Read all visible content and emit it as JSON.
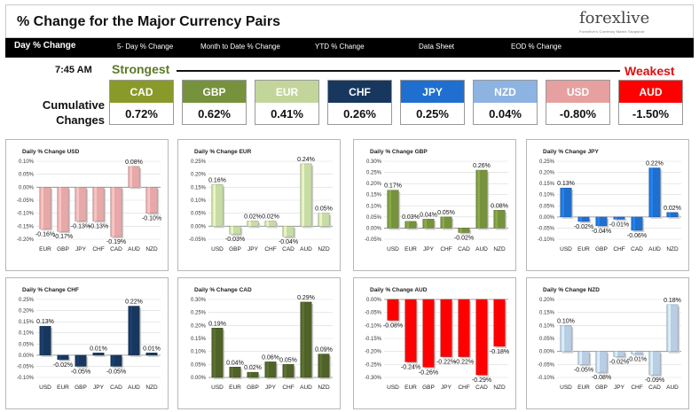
{
  "header": {
    "title": "% Change for the Major Currency Pairs",
    "logo_text": "forexlive",
    "logo_tagline": "Forexlive's Currency Matrix Snapshot"
  },
  "nav": {
    "items": [
      "Day % Change",
      "5- Day % Change",
      "Month to Date % Change",
      "YTD % Change",
      "Data Sheet",
      "EOD % Change"
    ]
  },
  "summary": {
    "time": "7:45 AM",
    "strongest_label": "Strongest",
    "weakest_label": "Weakest",
    "cumulative_label": "Cumulative Changes",
    "currencies": [
      {
        "code": "CAD",
        "value": "0.72%",
        "color": "#8a9a2a"
      },
      {
        "code": "GBP",
        "value": "0.62%",
        "color": "#76923c"
      },
      {
        "code": "EUR",
        "value": "0.41%",
        "color": "#c2d69b"
      },
      {
        "code": "CHF",
        "value": "0.26%",
        "color": "#17375e"
      },
      {
        "code": "JPY",
        "value": "0.25%",
        "color": "#1f6fd0"
      },
      {
        "code": "NZD",
        "value": "0.04%",
        "color": "#8db3e2"
      },
      {
        "code": "USD",
        "value": "-0.80%",
        "color": "#e6a0a0"
      },
      {
        "code": "AUD",
        "value": "-1.50%",
        "color": "#ff0000"
      }
    ]
  },
  "chart_data": [
    {
      "type": "bar",
      "title": "Daily % Change USD",
      "categories": [
        "EUR",
        "GBP",
        "JPY",
        "CHF",
        "CAD",
        "AUD",
        "NZD"
      ],
      "values": [
        -0.16,
        -0.17,
        -0.13,
        -0.13,
        -0.19,
        0.08,
        -0.1
      ],
      "labels": [
        "-0.16%",
        "-0.17%",
        "-0.13%",
        "-0.13%",
        "-0.19%",
        "0.08%",
        "-0.10%"
      ],
      "ylim": [
        -0.2,
        0.1
      ],
      "ticks": [
        0.1,
        0.05,
        0.0,
        -0.05,
        -0.1,
        -0.15,
        -0.2
      ],
      "tick_labels": [
        "0.10%",
        "0.05%",
        "0.00%",
        "-0.05%",
        "-0.10%",
        "-0.15%",
        "-0.20%"
      ],
      "color": "#e6a8a8"
    },
    {
      "type": "bar",
      "title": "Daily % Change EUR",
      "categories": [
        "USD",
        "GBP",
        "JPY",
        "CHF",
        "CAD",
        "AUD",
        "NZD"
      ],
      "values": [
        0.16,
        -0.03,
        0.02,
        0.02,
        -0.04,
        0.24,
        0.05
      ],
      "labels": [
        "0.16%",
        "-0.03%",
        "0.02%",
        "0.02%",
        "-0.04%",
        "0.24%",
        "0.05%"
      ],
      "ylim": [
        -0.05,
        0.25
      ],
      "ticks": [
        0.25,
        0.2,
        0.15,
        0.1,
        0.05,
        0.0,
        -0.05
      ],
      "tick_labels": [
        "0.25%",
        "0.20%",
        "0.15%",
        "0.10%",
        "0.05%",
        "0.00%",
        "-0.05%"
      ],
      "color": "#c8dca6"
    },
    {
      "type": "bar",
      "title": "Daily % Change GBP",
      "categories": [
        "USD",
        "EUR",
        "JPY",
        "CHF",
        "CAD",
        "AUD",
        "NZD"
      ],
      "values": [
        0.17,
        0.03,
        0.04,
        0.05,
        -0.02,
        0.26,
        0.08
      ],
      "labels": [
        "0.17%",
        "0.03%",
        "0.04%",
        "0.05%",
        "-0.02%",
        "0.26%",
        "0.08%"
      ],
      "ylim": [
        -0.05,
        0.3
      ],
      "ticks": [
        0.3,
        0.25,
        0.2,
        0.15,
        0.1,
        0.05,
        0.0,
        -0.05
      ],
      "tick_labels": [
        "0.30%",
        "0.25%",
        "0.20%",
        "0.15%",
        "0.10%",
        "0.05%",
        "0.00%",
        "-0.05%"
      ],
      "color": "#76923c"
    },
    {
      "type": "bar",
      "title": "Daily % Change JPY",
      "categories": [
        "USD",
        "EUR",
        "GBP",
        "CHF",
        "CAD",
        "AUD",
        "NZD"
      ],
      "values": [
        0.13,
        -0.02,
        -0.04,
        -0.01,
        -0.06,
        0.22,
        0.02
      ],
      "labels": [
        "0.13%",
        "-0.02%",
        "-0.04%",
        "-0.01%",
        "-0.06%",
        "0.22%",
        "0.02%"
      ],
      "ylim": [
        -0.1,
        0.25
      ],
      "ticks": [
        0.25,
        0.2,
        0.15,
        0.1,
        0.05,
        0.0,
        -0.05,
        -0.1
      ],
      "tick_labels": [
        "0.25%",
        "0.20%",
        "0.15%",
        "0.10%",
        "0.05%",
        "0.00%",
        "-0.05%",
        "-0.10%"
      ],
      "color": "#1f6fd0"
    },
    {
      "type": "bar",
      "title": "Daily % Change CHF",
      "categories": [
        "USD",
        "EUR",
        "GBP",
        "JPY",
        "CAD",
        "AUD",
        "NZD"
      ],
      "values": [
        0.13,
        -0.02,
        -0.05,
        0.01,
        -0.05,
        0.22,
        0.01
      ],
      "labels": [
        "0.13%",
        "-0.02%",
        "-0.05%",
        "0.01%",
        "-0.05%",
        "0.22%",
        "0.01%"
      ],
      "ylim": [
        -0.1,
        0.25
      ],
      "ticks": [
        0.25,
        0.2,
        0.15,
        0.1,
        0.05,
        0.0,
        -0.05,
        -0.1
      ],
      "tick_labels": [
        "0.25%",
        "0.20%",
        "0.15%",
        "0.10%",
        "0.05%",
        "0.00%",
        "-0.05%",
        "-0.10%"
      ],
      "color": "#17375e"
    },
    {
      "type": "bar",
      "title": "Daily % Change CAD",
      "categories": [
        "USD",
        "EUR",
        "GBP",
        "JPY",
        "CHF",
        "AUD",
        "NZD"
      ],
      "values": [
        0.19,
        0.04,
        0.02,
        0.06,
        0.05,
        0.29,
        0.09
      ],
      "labels": [
        "0.19%",
        "0.04%",
        "0.02%",
        "0.06%",
        "0.05%",
        "0.29%",
        "0.09%"
      ],
      "ylim": [
        0.0,
        0.3
      ],
      "ticks": [
        0.3,
        0.25,
        0.2,
        0.15,
        0.1,
        0.05,
        0.0
      ],
      "tick_labels": [
        "0.30%",
        "0.25%",
        "0.20%",
        "0.15%",
        "0.10%",
        "0.05%",
        "0.00%"
      ],
      "color": "#4f6228"
    },
    {
      "type": "bar",
      "title": "Daily % Change AUD",
      "categories": [
        "USD",
        "EUR",
        "GBP",
        "JPY",
        "CHF",
        "CAD",
        "NZD"
      ],
      "values": [
        -0.08,
        -0.24,
        -0.26,
        -0.22,
        -0.22,
        -0.29,
        -0.18
      ],
      "labels": [
        "-0.08%",
        "-0.24%",
        "-0.26%",
        "-0.22%",
        "-0.22%",
        "-0.29%",
        "-0.18%"
      ],
      "ylim": [
        -0.3,
        0.0
      ],
      "ticks": [
        0.0,
        -0.05,
        -0.1,
        -0.15,
        -0.2,
        -0.25,
        -0.3
      ],
      "tick_labels": [
        "0.00%",
        "-0.05%",
        "-0.10%",
        "-0.15%",
        "-0.20%",
        "-0.25%",
        "-0.30%"
      ],
      "color": "#ff0000"
    },
    {
      "type": "bar",
      "title": "Daily % Change NZD",
      "categories": [
        "USD",
        "EUR",
        "GBP",
        "JPY",
        "CHF",
        "CAD",
        "AUD"
      ],
      "values": [
        0.1,
        -0.05,
        -0.08,
        -0.02,
        -0.01,
        -0.09,
        0.18
      ],
      "labels": [
        "0.10%",
        "-0.05%",
        "-0.08%",
        "-0.02%",
        "-0.01%",
        "-0.09%",
        "0.18%"
      ],
      "ylim": [
        -0.1,
        0.2
      ],
      "ticks": [
        0.2,
        0.15,
        0.1,
        0.05,
        0.0,
        -0.05,
        -0.1
      ],
      "tick_labels": [
        "0.20%",
        "0.15%",
        "0.10%",
        "0.05%",
        "0.00%",
        "-0.05%",
        "-0.10%"
      ],
      "color": "#b9cde5"
    }
  ]
}
